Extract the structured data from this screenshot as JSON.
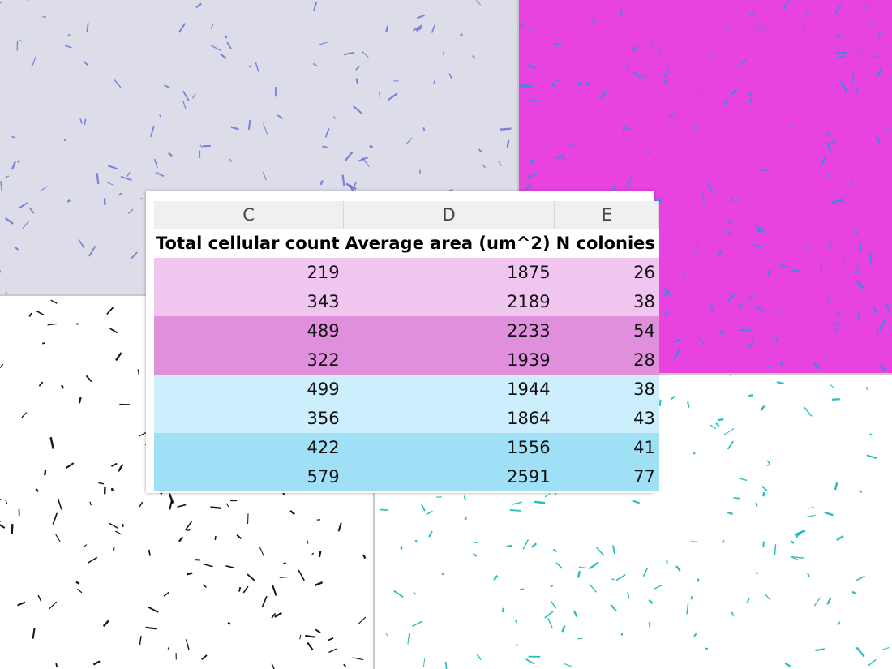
{
  "table": {
    "columns": [
      "C",
      "D",
      "E"
    ],
    "headers": [
      "Total cellular count",
      "Average area (um^2)",
      "N colonies"
    ],
    "rows": [
      [
        "219",
        "1875",
        "26"
      ],
      [
        "343",
        "2189",
        "38"
      ],
      [
        "489",
        "2233",
        "54"
      ],
      [
        "322",
        "1939",
        "28"
      ],
      [
        "499",
        "1944",
        "38"
      ],
      [
        "356",
        "1864",
        "43"
      ],
      [
        "422",
        "1556",
        "41"
      ],
      [
        "579",
        "2591",
        "77"
      ]
    ]
  }
}
